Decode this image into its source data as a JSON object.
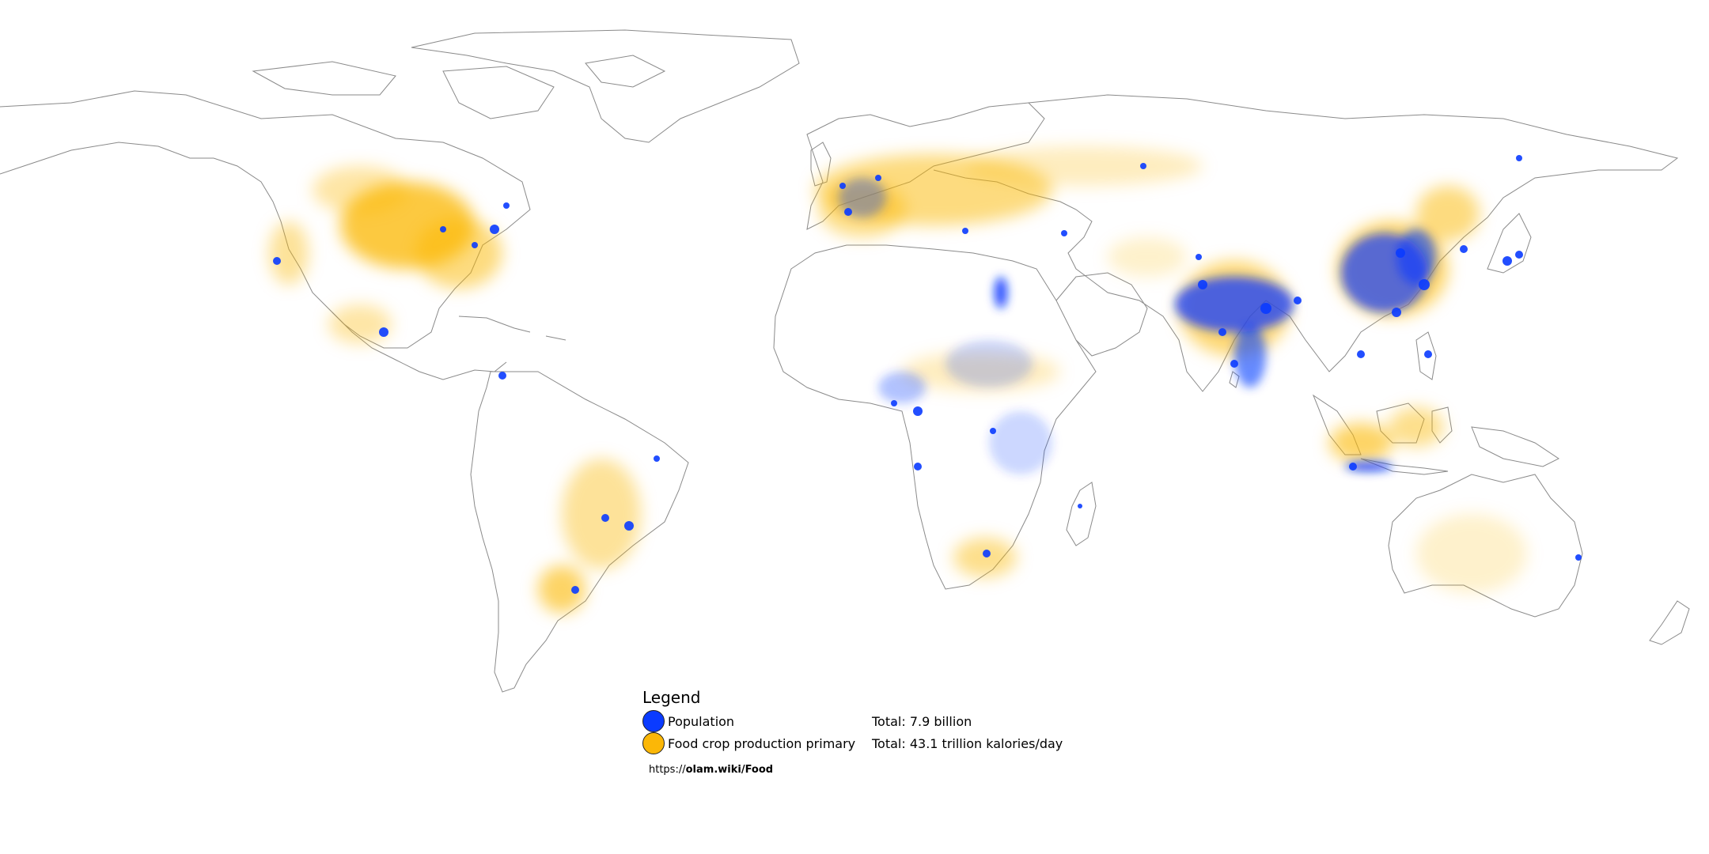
{
  "colors": {
    "population": "#0a3bff",
    "food": "#fbb707",
    "outline": "#8a8a8a"
  },
  "legend": {
    "title": "Legend",
    "items": [
      {
        "label": "Population",
        "total": "Total: 7.9 billion",
        "icon": "population-swatch-icon"
      },
      {
        "label": "Food crop production primary",
        "total": "Total: 43.1 trillion kalories/day",
        "icon": "food-swatch-icon"
      }
    ]
  },
  "source": {
    "prefix": "https://",
    "bold": "olam.wiki/Food"
  }
}
